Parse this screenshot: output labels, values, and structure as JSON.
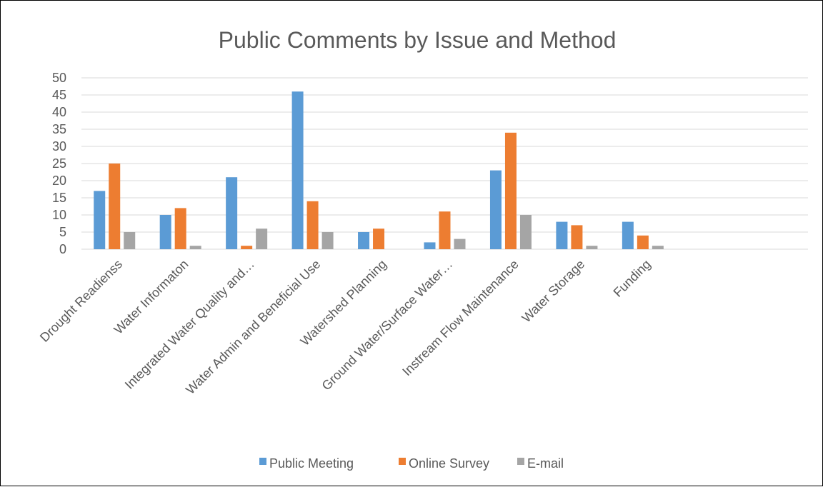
{
  "chart_data": {
    "type": "bar",
    "title": "Public Comments by Issue and Method",
    "xlabel": "",
    "ylabel": "",
    "ylim": [
      0,
      50
    ],
    "yticks": [
      0,
      5,
      10,
      15,
      20,
      25,
      30,
      35,
      40,
      45,
      50
    ],
    "grid": true,
    "legend_position": "bottom",
    "categories": [
      "Drought Readienss",
      "Water Informaton",
      "Integrated Water Quality and…",
      "Water Admin and Beneficial Use",
      "Watershed Planning",
      "Ground Water/Surface Water…",
      "Instream Flow Maintenance",
      "Water Storage",
      "Funding"
    ],
    "series": [
      {
        "name": "Public Meeting",
        "color": "#5B9BD5",
        "values": [
          17,
          10,
          21,
          46,
          5,
          2,
          23,
          8,
          8
        ]
      },
      {
        "name": "Online Survey",
        "color": "#ED7D31",
        "values": [
          25,
          12,
          1,
          14,
          6,
          11,
          34,
          7,
          4
        ]
      },
      {
        "name": "E-mail",
        "color": "#A5A5A5",
        "values": [
          5,
          1,
          6,
          5,
          0,
          3,
          10,
          1,
          1
        ]
      }
    ]
  },
  "colors": {
    "gridline": "#D9D9D9",
    "text": "#595959"
  }
}
